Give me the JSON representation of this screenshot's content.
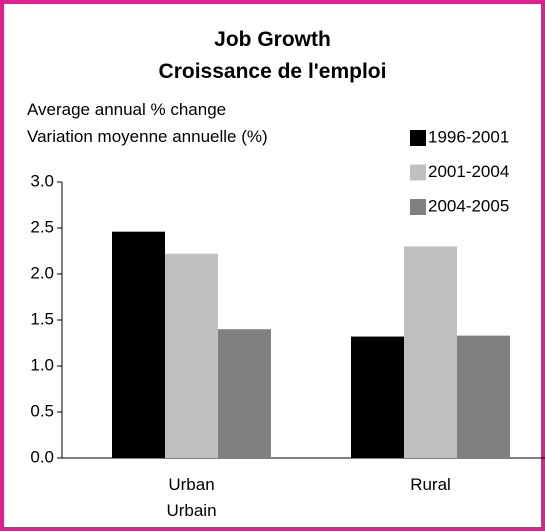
{
  "chart_data": {
    "type": "bar",
    "title": "Job Growth\nCroissance de l'emploi",
    "y_label": "Average annual % change\nVariation moyenne annuelle (%)",
    "categories": [
      "Urban\nUrbain",
      "Rural"
    ],
    "series": [
      {
        "name": "1996-2001",
        "color": "#000000",
        "values": [
          2.46,
          1.32
        ]
      },
      {
        "name": "2001-2004",
        "color": "#c0c0c0",
        "values": [
          2.22,
          2.3
        ]
      },
      {
        "name": "2004-2005",
        "color": "#808080",
        "values": [
          1.4,
          1.33
        ]
      }
    ],
    "ylim": [
      0,
      3
    ],
    "yticks": [
      {
        "value": 0,
        "label": "0.0"
      },
      {
        "value": 0.5,
        "label": "0.5"
      },
      {
        "value": 1,
        "label": "1.0"
      },
      {
        "value": 1.5,
        "label": "1.5"
      },
      {
        "value": 2,
        "label": "2.0"
      },
      {
        "value": 2.5,
        "label": "2.5"
      },
      {
        "value": 3,
        "label": "3.0"
      }
    ],
    "legend": "upper right"
  }
}
